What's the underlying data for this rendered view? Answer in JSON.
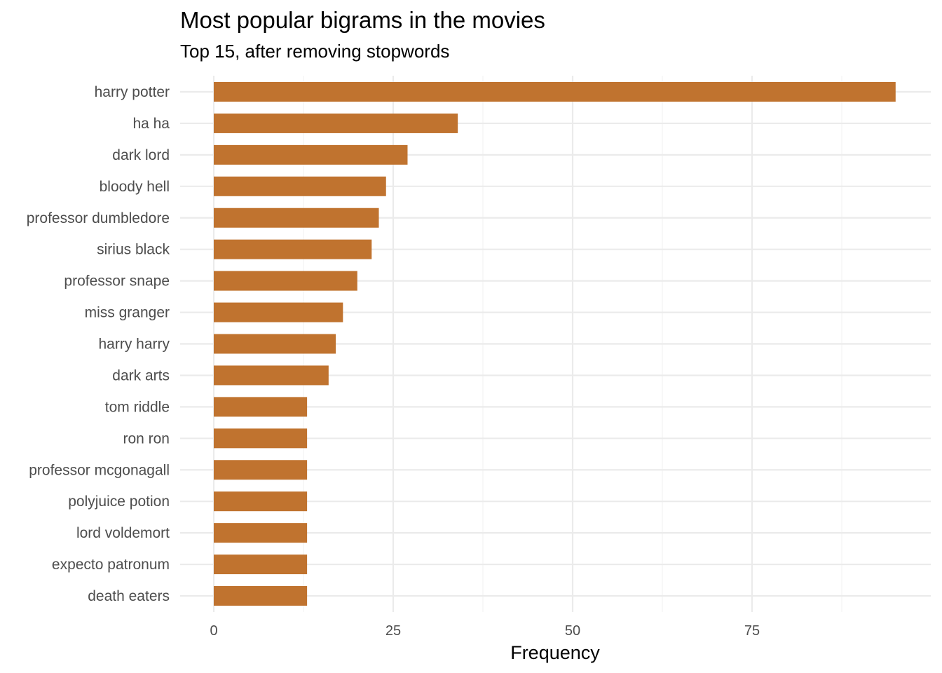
{
  "chart_data": {
    "type": "bar",
    "orientation": "horizontal",
    "title": "Most popular bigrams in the movies",
    "subtitle": "Top 15, after removing stopwords",
    "xlabel": "Frequency",
    "ylabel": "",
    "xlim": [
      0,
      100
    ],
    "xticks": [
      0,
      25,
      50,
      75
    ],
    "xtick_labels": [
      "0",
      "25",
      "50",
      "75"
    ],
    "grid": true,
    "legend": "none",
    "bar_color": "#C0732F",
    "categories": [
      "harry potter",
      "ha ha",
      "dark lord",
      "bloody hell",
      "professor dumbledore",
      "sirius black",
      "professor snape",
      "miss granger",
      "harry harry",
      "dark arts",
      "tom riddle",
      "ron ron",
      "professor mcgonagall",
      "polyjuice potion",
      "lord voldemort",
      "expecto patronum",
      "death eaters"
    ],
    "values": [
      95,
      34,
      27,
      24,
      23,
      22,
      20,
      18,
      17,
      16,
      13,
      13,
      13,
      13,
      13,
      13,
      13
    ]
  }
}
